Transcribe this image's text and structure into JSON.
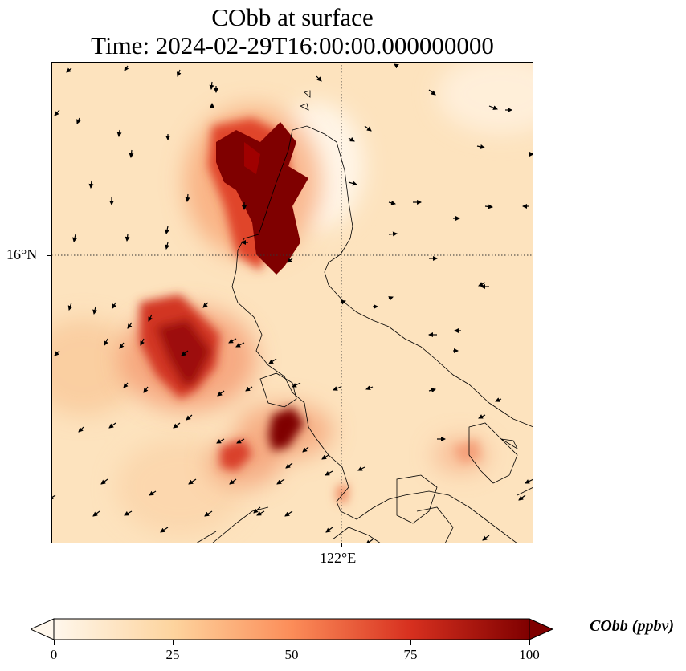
{
  "title_line1": "CObb at surface",
  "title_line2": "Time: 2024-02-29T16:00:00.000000000",
  "lat_tick_label": "16°N",
  "lon_tick_label": "122°E",
  "colorbar": {
    "label": "CObb (ppbv)",
    "ticks": [
      "0",
      "25",
      "50",
      "75",
      "100"
    ],
    "tick_values": [
      0,
      25,
      50,
      75,
      100
    ],
    "min": 0,
    "max": 100,
    "colormap": "OrRd",
    "colors": [
      "#fff7ec",
      "#fdd49e",
      "#fc8d59",
      "#d7301f",
      "#7f0000"
    ]
  },
  "background_color": "#fde3be",
  "gridline_style": "dotted"
}
